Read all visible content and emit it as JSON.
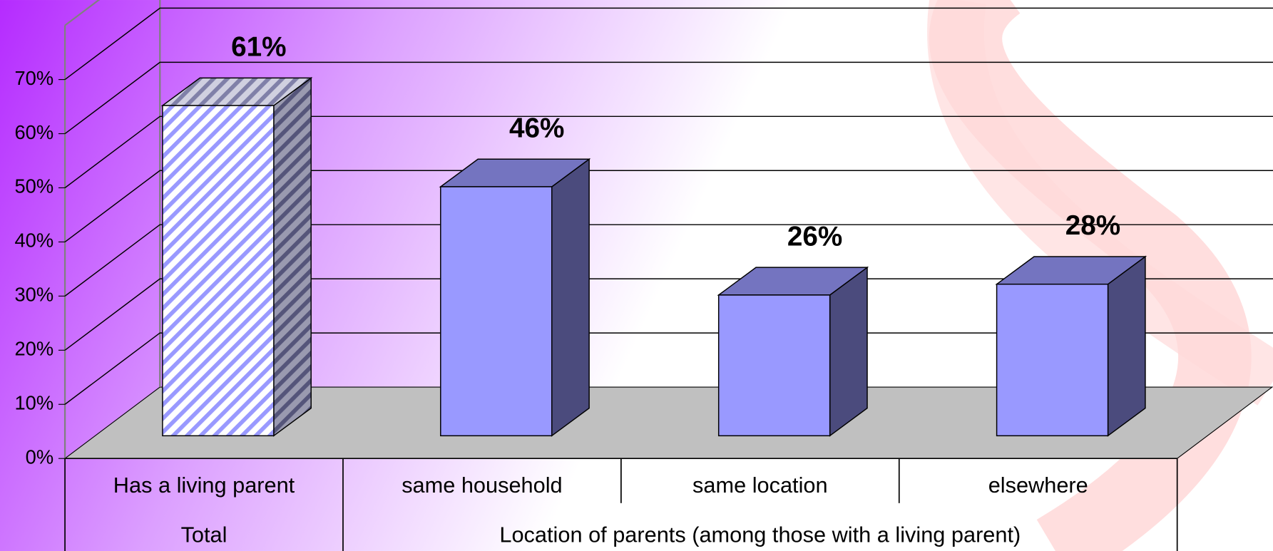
{
  "chart_data": {
    "type": "bar3d",
    "categories": [
      "Has a living parent",
      "same household",
      "same location",
      "elsewhere"
    ],
    "group_labels": [
      "Total",
      "Location of parents (among those with a living parent)"
    ],
    "values": [
      61,
      46,
      26,
      28
    ],
    "value_labels": [
      "61%",
      "46%",
      "26%",
      "28%"
    ],
    "color": "#9999ff",
    "hatched": [
      true,
      false,
      false,
      false
    ],
    "ylim": [
      0,
      80
    ],
    "yticks": [
      {
        "value": 0,
        "label": "0%"
      },
      {
        "value": 10,
        "label": "10%"
      },
      {
        "value": 20,
        "label": "20%"
      },
      {
        "value": 30,
        "label": "30%"
      },
      {
        "value": 40,
        "label": "40%"
      },
      {
        "value": 50,
        "label": "50%"
      },
      {
        "value": 60,
        "label": "60%"
      },
      {
        "value": 70,
        "label": "70%"
      }
    ],
    "grid": true
  }
}
